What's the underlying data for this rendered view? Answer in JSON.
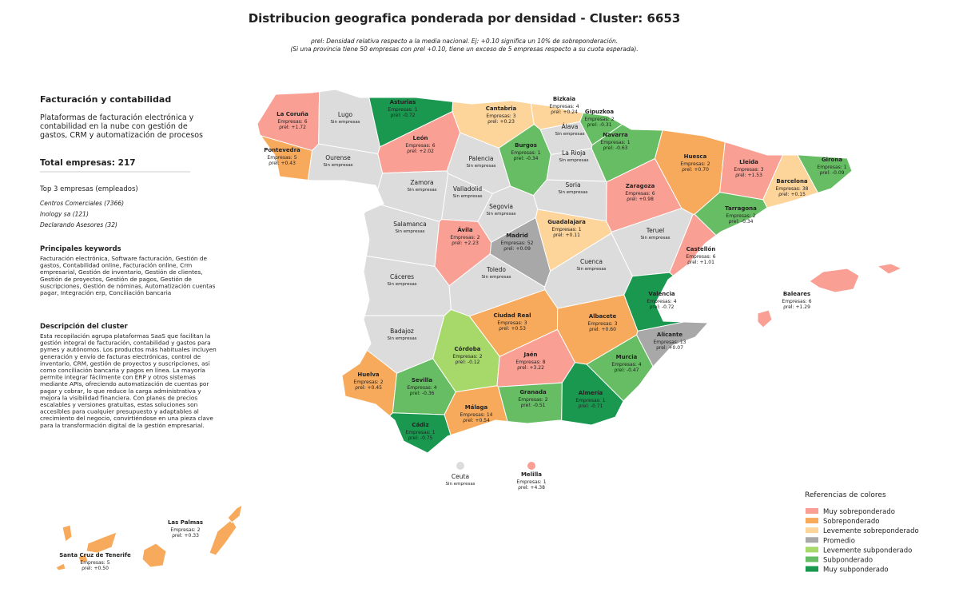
{
  "title": "Distribucion geografica ponderada por densidad - Cluster: 6653",
  "subtitle": [
    "ρrel: Densidad relativa respecto a la media nacional. Ej: +0.10 significa un 10% de sobreponderación.",
    "(Si una provincia tiene 50 empresas con ρrel +0.10, tiene un exceso de 5 empresas respecto a su cuota esperada)."
  ],
  "sidebar": {
    "cluster_name": "Facturación y contabilidad",
    "summary": [
      "Plataformas de facturación electrónica y",
      "contabilidad en la nube con gestión de",
      "gastos, CRM y automatización de procesos"
    ],
    "total_label": "Total empresas:",
    "total": 217,
    "top_header": "Top 3 empresas (empleados)",
    "top": [
      "Centros Comerciales (7366)",
      "Inology sa (121)",
      "Declarando Asesores (32)"
    ],
    "keywords_header": "Principales keywords",
    "keywords": [
      "Facturación electrónica, Software facturación, Gestión de",
      "gastos, Contabilidad online, Facturación online, Crm",
      "empresarial, Gestión de inventario, Gestión de clientes,",
      "Gestión de proyectos, Gestión de pagos, Gestión de",
      "suscripciones, Gestión de nóminas, Automatización cuentas",
      "pagar, Integración erp, Conciliación bancaria"
    ],
    "description_header": "Descripción del cluster",
    "description": [
      "Esta recopilación agrupa plataformas SaaS que facilitan la",
      "gestión integral de facturación, contabilidad y gastos para",
      "pymes y autónomos. Los productos más habituales incluyen",
      "generación y envío de facturas electrónicas, control de",
      "inventario, CRM, gestión de proyectos y suscripciones, así",
      "como conciliación bancaria y pagos en línea. La mayoría",
      "permite integrar fácilmente con ERP y otros sistemas",
      "mediante APIs, ofreciendo automatización de cuentas por",
      "pagar y cobrar, lo que reduce la carga administrativa y",
      "mejora la visibilidad financiera. Con planes de precios",
      "escalables y versiones gratuitas, estas soluciones son",
      "accesibles para cualquier presupuesto y adaptables al",
      "crecimiento del negocio, convirtiéndose en una pieza clave",
      "para la transformación digital de la gestión empresarial."
    ]
  },
  "labels": {
    "companies": "Empresas:",
    "rho": "ρrel:",
    "no_companies": "Sin empresas"
  },
  "no_data_color": "#dcdcdc",
  "legend": {
    "title": "Referencias de colores",
    "items": [
      {
        "name": "Muy sobreponderado",
        "color": "#f99f94"
      },
      {
        "name": "Sobreponderado",
        "color": "#f8aa5c"
      },
      {
        "name": "Levemente sobreponderado",
        "color": "#fdd49a"
      },
      {
        "name": "Promedio",
        "color": "#a8a8a8"
      },
      {
        "name": "Levemente subponderado",
        "color": "#a6d96a"
      },
      {
        "name": "Subponderado",
        "color": "#66bd63"
      },
      {
        "name": "Muy subponderado",
        "color": "#1a9850"
      }
    ]
  },
  "provinces": [
    {
      "name": "La Coruña",
      "companies": 6,
      "rho": "+1.72",
      "category": 0
    },
    {
      "name": "Lugo"
    },
    {
      "name": "Asturias",
      "companies": 1,
      "rho": "-0.72",
      "category": 6
    },
    {
      "name": "Cantabria",
      "companies": 3,
      "rho": "+0.23",
      "category": 2
    },
    {
      "name": "Bizkaia",
      "companies": 4,
      "rho": "+0.24",
      "category": 2
    },
    {
      "name": "Gipuzkoa",
      "companies": 2,
      "rho": "-0.31",
      "category": 5
    },
    {
      "name": "Álava"
    },
    {
      "name": "Navarra",
      "companies": 1,
      "rho": "-0.63",
      "category": 5
    },
    {
      "name": "Pontevedra",
      "companies": 5,
      "rho": "+0.43",
      "category": 1
    },
    {
      "name": "Ourense"
    },
    {
      "name": "León",
      "companies": 6,
      "rho": "+2.02",
      "category": 0
    },
    {
      "name": "Burgos",
      "companies": 1,
      "rho": "-0.34",
      "category": 5
    },
    {
      "name": "La Rioja"
    },
    {
      "name": "Palencia"
    },
    {
      "name": "Huesca",
      "companies": 2,
      "rho": "+0.70",
      "category": 1
    },
    {
      "name": "Lleida",
      "companies": 3,
      "rho": "+1.53",
      "category": 0
    },
    {
      "name": "Girona",
      "companies": 1,
      "rho": "-0.09",
      "category": 5
    },
    {
      "name": "Zamora"
    },
    {
      "name": "Valladolid"
    },
    {
      "name": "Soria"
    },
    {
      "name": "Zaragoza",
      "companies": 6,
      "rho": "+0.98",
      "category": 0
    },
    {
      "name": "Barcelona",
      "companies": 38,
      "rho": "+0.15",
      "category": 2
    },
    {
      "name": "Segovia"
    },
    {
      "name": "Tarragona",
      "companies": 2,
      "rho": "-0.34",
      "category": 5
    },
    {
      "name": "Salamanca"
    },
    {
      "name": "Ávila",
      "companies": 2,
      "rho": "+2.23",
      "category": 0
    },
    {
      "name": "Madrid",
      "companies": 52,
      "rho": "+0.09",
      "category": 3
    },
    {
      "name": "Guadalajara",
      "companies": 1,
      "rho": "+0.11",
      "category": 2
    },
    {
      "name": "Teruel"
    },
    {
      "name": "Castellón",
      "companies": 6,
      "rho": "+1.01",
      "category": 0
    },
    {
      "name": "Cáceres"
    },
    {
      "name": "Toledo"
    },
    {
      "name": "Cuenca"
    },
    {
      "name": "Valencia",
      "companies": 4,
      "rho": "-0.72",
      "category": 6
    },
    {
      "name": "Baleares",
      "companies": 6,
      "rho": "+1.29",
      "category": 0
    },
    {
      "name": "Ciudad Real",
      "companies": 3,
      "rho": "+0.53",
      "category": 1
    },
    {
      "name": "Albacete",
      "companies": 3,
      "rho": "+0.60",
      "category": 1
    },
    {
      "name": "Badajoz"
    },
    {
      "name": "Alicante",
      "companies": 13,
      "rho": "+0.07",
      "category": 3
    },
    {
      "name": "Córdoba",
      "companies": 2,
      "rho": "-0.12",
      "category": 4
    },
    {
      "name": "Jaén",
      "companies": 8,
      "rho": "+3.22",
      "category": 0
    },
    {
      "name": "Murcia",
      "companies": 4,
      "rho": "-0.47",
      "category": 5
    },
    {
      "name": "Huelva",
      "companies": 2,
      "rho": "+0.45",
      "category": 1
    },
    {
      "name": "Sevilla",
      "companies": 4,
      "rho": "-0.36",
      "category": 5
    },
    {
      "name": "Granada",
      "companies": 2,
      "rho": "-0.51",
      "category": 5
    },
    {
      "name": "Almería",
      "companies": 1,
      "rho": "-0.71",
      "category": 6
    },
    {
      "name": "Málaga",
      "companies": 14,
      "rho": "+0.54",
      "category": 1
    },
    {
      "name": "Cádiz",
      "companies": 1,
      "rho": "-0.75",
      "category": 6
    },
    {
      "name": "Ceuta"
    },
    {
      "name": "Melilla",
      "companies": 1,
      "rho": "+4.38",
      "category": 0
    },
    {
      "name": "Las Palmas",
      "companies": 2,
      "rho": "+0.33",
      "category": 1
    },
    {
      "name": "Santa Cruz de Tenerife",
      "companies": 5,
      "rho": "+0.50",
      "category": 1
    }
  ]
}
